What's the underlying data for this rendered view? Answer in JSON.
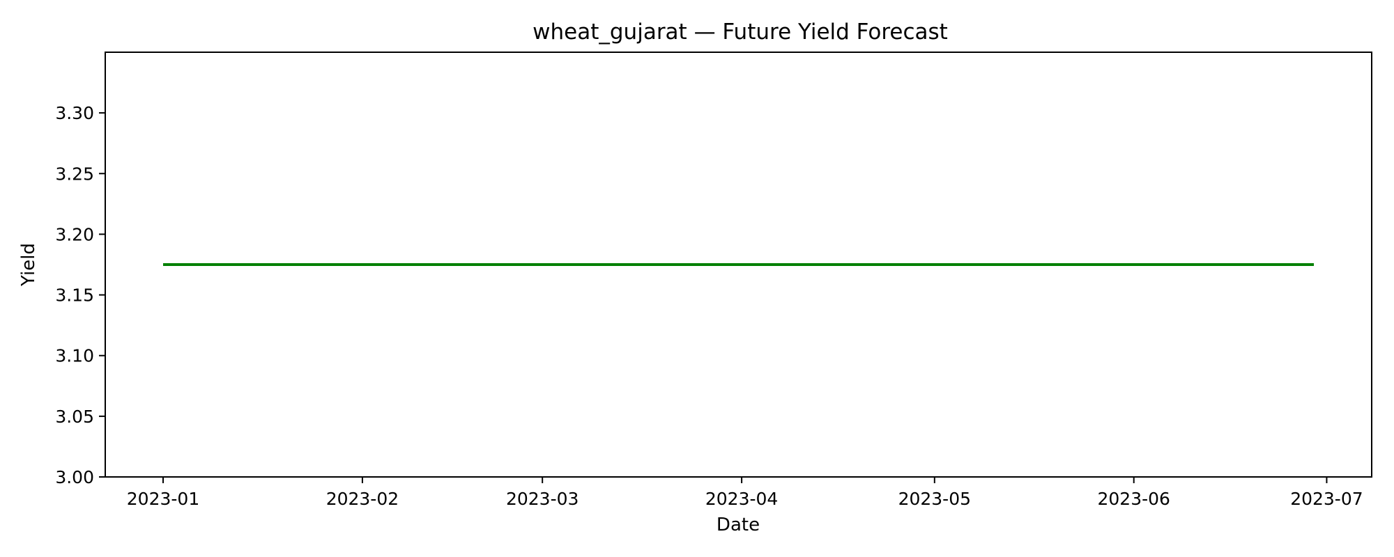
{
  "chart_data": {
    "type": "line",
    "title": "wheat_gujarat — Future Yield Forecast",
    "xlabel": "Date",
    "ylabel": "Yield",
    "xlim": [
      "2022-12-23",
      "2023-07-08"
    ],
    "ylim": [
      3.0,
      3.35
    ],
    "x_ticks": [
      "2023-01",
      "2023-02",
      "2023-03",
      "2023-04",
      "2023-05",
      "2023-06",
      "2023-07"
    ],
    "x_tick_dates": [
      "2023-01-01",
      "2023-02-01",
      "2023-03-01",
      "2023-04-01",
      "2023-05-01",
      "2023-06-01",
      "2023-07-01"
    ],
    "y_ticks": [
      "3.00",
      "3.05",
      "3.10",
      "3.15",
      "3.20",
      "3.25",
      "3.30"
    ],
    "grid": false,
    "series": [
      {
        "color": "#008000",
        "x": [
          "2023-01-01",
          "2023-06-29"
        ],
        "y": [
          3.175,
          3.175
        ]
      }
    ]
  }
}
